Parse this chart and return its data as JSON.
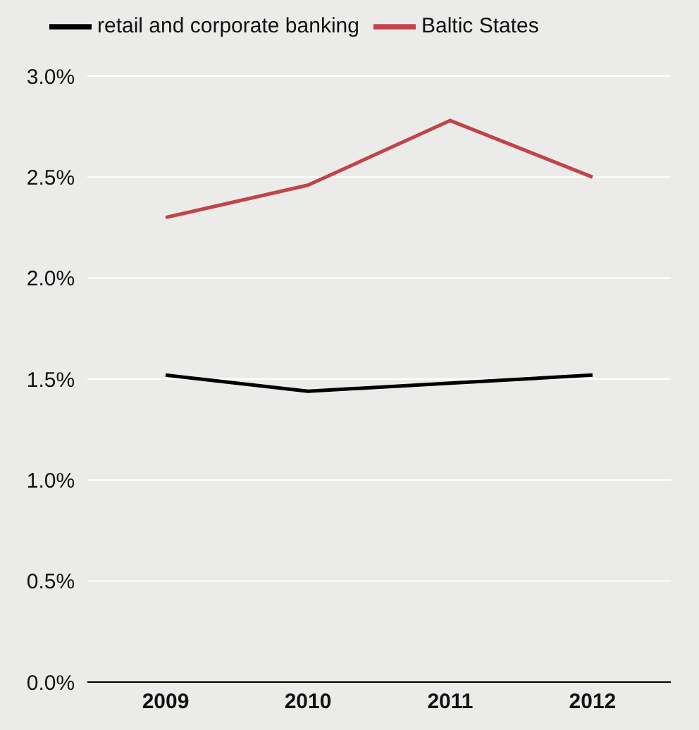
{
  "chart_data": {
    "type": "line",
    "categories": [
      "2009",
      "2010",
      "2011",
      "2012"
    ],
    "series": [
      {
        "name": "retail and corporate banking",
        "color": "#000000",
        "values": [
          1.52,
          1.44,
          1.48,
          1.52
        ]
      },
      {
        "name": "Baltic States",
        "color": "#c0444a",
        "values": [
          2.3,
          2.46,
          2.78,
          2.5
        ]
      }
    ],
    "ylim": [
      0,
      3
    ],
    "yticks": [
      {
        "value": 0,
        "label": "0.0%"
      },
      {
        "value": 0.5,
        "label": "0.5%"
      },
      {
        "value": 1,
        "label": "1.0%"
      },
      {
        "value": 1.5,
        "label": "1.5%"
      },
      {
        "value": 2,
        "label": "2.0%"
      },
      {
        "value": 2.5,
        "label": "2.5%"
      },
      {
        "value": 3,
        "label": "3.0%"
      }
    ],
    "grid": "y",
    "legend": "top left",
    "marker": "none",
    "line_style": "solid"
  }
}
